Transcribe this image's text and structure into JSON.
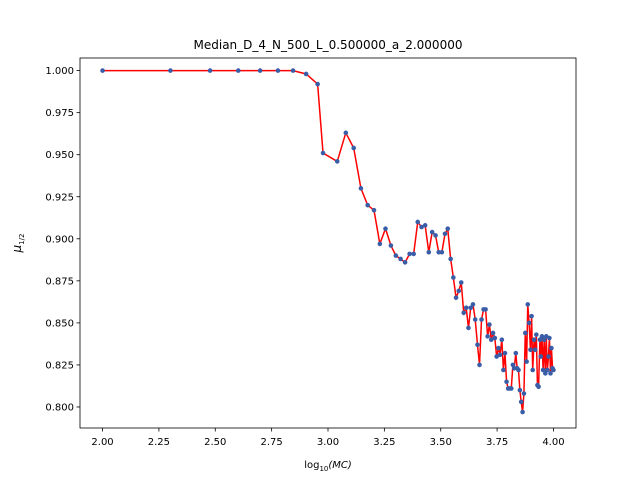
{
  "chart_data": {
    "type": "line",
    "title": "Median_D_4_N_500_L_0.500000_a_2.000000",
    "xlabel_main": "log",
    "xlabel_sub": "10",
    "xlabel_arg": "(MC)",
    "ylabel_main": "μ",
    "ylabel_sub": "1/2",
    "xlim": [
      1.9,
      4.1
    ],
    "ylim": [
      0.7875,
      1.0075
    ],
    "xticks": [
      2.0,
      2.25,
      2.5,
      2.75,
      3.0,
      3.25,
      3.5,
      3.75,
      4.0
    ],
    "xtick_labels": [
      "2.00",
      "2.25",
      "2.50",
      "2.75",
      "3.00",
      "3.25",
      "3.50",
      "3.75",
      "4.00"
    ],
    "yticks": [
      0.8,
      0.825,
      0.85,
      0.875,
      0.9,
      0.925,
      0.95,
      0.975,
      1.0
    ],
    "ytick_labels": [
      "0.800",
      "0.825",
      "0.850",
      "0.875",
      "0.900",
      "0.925",
      "0.950",
      "0.975",
      "1.000"
    ],
    "line_color": "#ff0000",
    "marker_color": "#3a5da8",
    "x": [
      2.0,
      2.301,
      2.477,
      2.602,
      2.699,
      2.778,
      2.845,
      2.903,
      2.954,
      2.978,
      3.041,
      3.079,
      3.114,
      3.146,
      3.176,
      3.204,
      3.23,
      3.255,
      3.279,
      3.301,
      3.322,
      3.342,
      3.362,
      3.38,
      3.398,
      3.415,
      3.431,
      3.447,
      3.462,
      3.477,
      3.491,
      3.505,
      3.519,
      3.531,
      3.544,
      3.556,
      3.568,
      3.58,
      3.591,
      3.602,
      3.613,
      3.623,
      3.633,
      3.643,
      3.653,
      3.663,
      3.672,
      3.681,
      3.69,
      3.699,
      3.708,
      3.716,
      3.724,
      3.732,
      3.74,
      3.748,
      3.756,
      3.763,
      3.771,
      3.778,
      3.785,
      3.792,
      3.799,
      3.806,
      3.813,
      3.82,
      3.826,
      3.833,
      3.839,
      3.845,
      3.851,
      3.857,
      3.863,
      3.869,
      3.875,
      3.881,
      3.886,
      3.892,
      3.898,
      3.903,
      3.908,
      3.914,
      3.919,
      3.924,
      3.929,
      3.934,
      3.94,
      3.944,
      3.949,
      3.954,
      3.959,
      3.964,
      3.968,
      3.973,
      3.978,
      3.982,
      3.987,
      3.991,
      3.996,
      4.0
    ],
    "y": [
      1.0,
      1.0,
      1.0,
      1.0,
      1.0,
      1.0,
      1.0,
      0.998,
      0.992,
      0.951,
      0.946,
      0.963,
      0.954,
      0.93,
      0.92,
      0.917,
      0.897,
      0.906,
      0.896,
      0.89,
      0.888,
      0.886,
      0.891,
      0.891,
      0.91,
      0.907,
      0.908,
      0.892,
      0.904,
      0.902,
      0.892,
      0.892,
      0.903,
      0.906,
      0.888,
      0.877,
      0.865,
      0.869,
      0.874,
      0.856,
      0.859,
      0.847,
      0.859,
      0.861,
      0.852,
      0.837,
      0.825,
      0.852,
      0.858,
      0.858,
      0.842,
      0.849,
      0.84,
      0.844,
      0.841,
      0.83,
      0.835,
      0.831,
      0.84,
      0.822,
      0.832,
      0.815,
      0.811,
      0.811,
      0.811,
      0.825,
      0.823,
      0.832,
      0.823,
      0.822,
      0.81,
      0.803,
      0.797,
      0.808,
      0.844,
      0.827,
      0.861,
      0.85,
      0.834,
      0.854,
      0.822,
      0.84,
      0.834,
      0.843,
      0.813,
      0.812,
      0.84,
      0.83,
      0.842,
      0.822,
      0.84,
      0.82,
      0.842,
      0.822,
      0.83,
      0.841,
      0.82,
      0.835,
      0.823,
      0.822
    ]
  }
}
